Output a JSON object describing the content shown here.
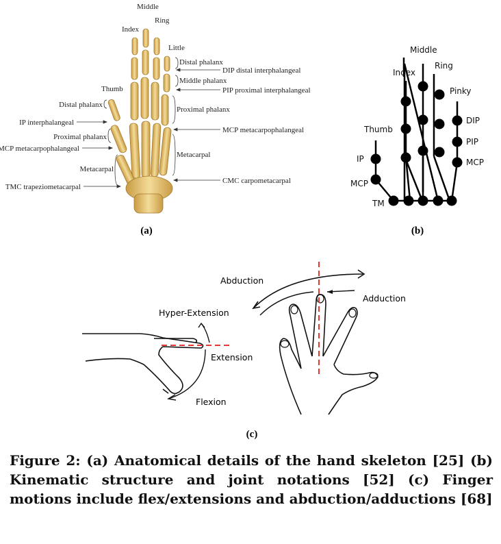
{
  "panel_a": {
    "finger_names": {
      "index": "Index",
      "middle": "Middle",
      "ring": "Ring",
      "little": "Little",
      "thumb": "Thumb"
    },
    "right_labels": [
      "Distal phalanx",
      "DIP distal interphalangeal",
      "Middle phalanx",
      "PIP proximal interphalangeal",
      "Proximal phalanx",
      "MCP metacarpophalangeal",
      "Metacarpal",
      "CMC carpometacarpal"
    ],
    "left_labels": [
      "Distal phalanx",
      "IP interphalangeal",
      "Proximal phalanx",
      "MCP metacarpophalangeal",
      "Metacarpal",
      "TMC trapeziometacarpal"
    ],
    "sublabel": "(a)"
  },
  "panel_b": {
    "fingers": [
      "Index",
      "Middle",
      "Ring",
      "Pinky",
      "Thumb"
    ],
    "right_joints": [
      "DIP",
      "PIP",
      "MCP"
    ],
    "thumb_joints": [
      "IP",
      "MCP",
      "TM"
    ],
    "sublabel": "(b)"
  },
  "panel_c": {
    "labels": {
      "hyper": "Hyper-Extension",
      "extension": "Extension",
      "flexion": "Flexion",
      "abduction": "Abduction",
      "adduction": "Adduction"
    },
    "sublabel": "(c)"
  },
  "caption": "Figure 2: (a) Anatomical details of the hand skeleton [25] (b) Kinematic structure and joint notations [52] (c) Finger motions include flex/extensions and abduction/adductions [68]",
  "colors": {
    "bone": "#e9cc7a",
    "bone_dark": "#b98f3a",
    "accent_red": "#e23a2e",
    "ink": "#111111"
  }
}
